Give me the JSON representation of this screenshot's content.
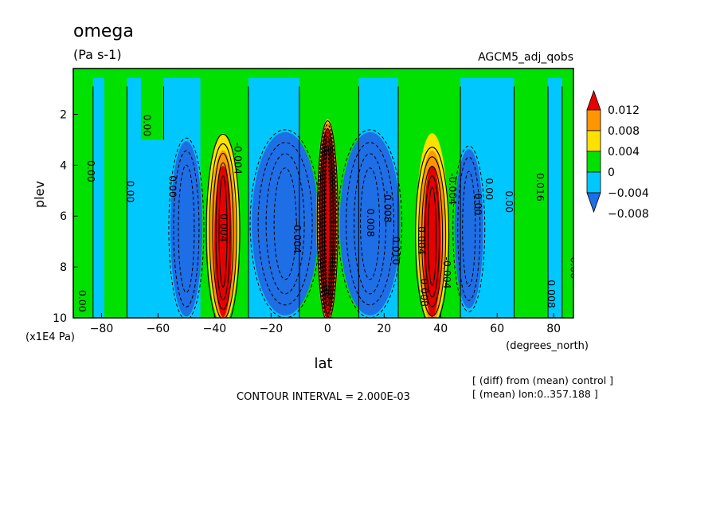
{
  "chart_data": {
    "type": "heatmap",
    "title": "omega",
    "units": "(Pa s-1)",
    "experiment": "AGCM5_adj_qobs",
    "xlabel": "lat",
    "x_units": "(degrees_north)",
    "ylabel": "plev",
    "y_units": "(x1E4 Pa)",
    "xlim": [
      -90,
      87
    ],
    "ylim": [
      10,
      0.2
    ],
    "x_ticks": [
      "-80",
      "-60",
      "-40",
      "-20",
      "0",
      "20",
      "40",
      "60",
      "80"
    ],
    "y_ticks": [
      "2",
      "4",
      "6",
      "8",
      "10"
    ],
    "contour_interval_text": "CONTOUR INTERVAL = 2.000E-03",
    "notes": [
      "[ (diff) from (mean) control ]",
      "[ (mean) lon:0..357.188 ]"
    ],
    "colorbar": {
      "labels": [
        "0.012",
        "0.008",
        "0.004",
        "0",
        "-0.004",
        "-0.008"
      ],
      "level_values": [
        0.012,
        0.008,
        0.004,
        0,
        -0.004,
        -0.008
      ],
      "colors": [
        "#1e6ee6",
        "#00c8ff",
        "#00e100",
        "#ffe100",
        "#ff9600",
        "#e60000"
      ]
    },
    "features": [
      {
        "name": "SH subtropical positive",
        "lat": -37,
        "plev_top": 2.5,
        "plev_bottom": 10,
        "peak": 0.016
      },
      {
        "name": "SH mid-latitude negative",
        "lat": -50,
        "plev_top": 2.5,
        "plev_bottom": 10,
        "peak": -0.008
      },
      {
        "name": "SH tropical negative",
        "lat": -15,
        "plev_top": 2.5,
        "plev_bottom": 10,
        "peak": -0.01
      },
      {
        "name": "Equatorial positive",
        "lat": 0,
        "plev_top": 2.2,
        "plev_bottom": 10,
        "peak": 0.03
      },
      {
        "name": "NH tropical negative",
        "lat": 15,
        "plev_top": 2.5,
        "plev_bottom": 10,
        "peak": -0.01
      },
      {
        "name": "NH subtropical positive",
        "lat": 37,
        "plev_top": 2.8,
        "plev_bottom": 10,
        "peak": 0.016
      },
      {
        "name": "NH mid-latitude negative",
        "lat": 50,
        "plev_top": 2.8,
        "plev_bottom": 10,
        "peak": -0.008
      }
    ],
    "contour_labels": [
      "0.00",
      "0.00",
      "0.00",
      "0.00",
      "0.00",
      "-0.004",
      "0.004",
      "-0.004",
      "0.008",
      "-0.008",
      "0.010",
      "0.004",
      "-0.004",
      "0.00",
      "0.00",
      "0.00",
      "0.016",
      "0.008",
      "-0.008",
      "-0.004",
      "0.00"
    ]
  }
}
